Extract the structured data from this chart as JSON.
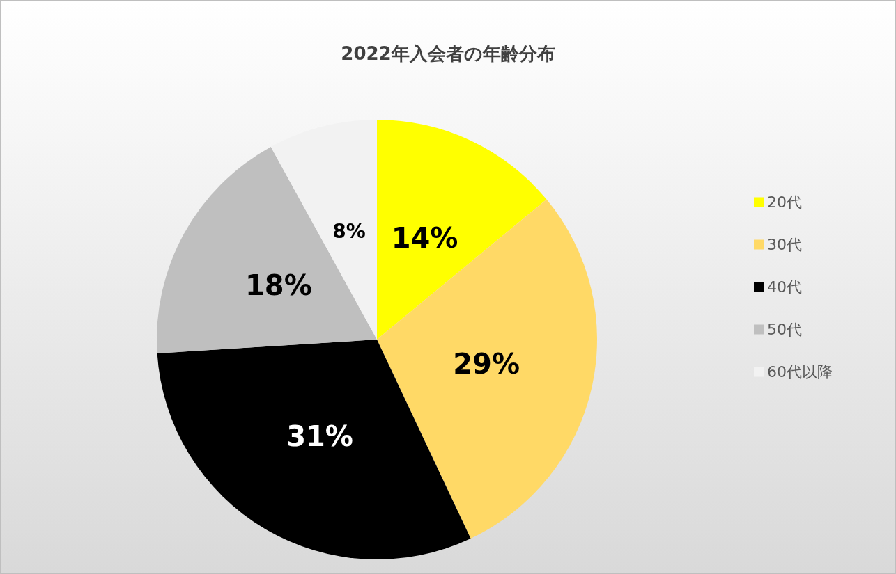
{
  "chart_data": {
    "type": "pie",
    "title": "2022年入会者の年齢分布",
    "categories": [
      "20代",
      "30代",
      "40代",
      "50代",
      "60代以降"
    ],
    "values": [
      14,
      29,
      31,
      18,
      8
    ],
    "colors": [
      "#ffff00",
      "#ffd966",
      "#000000",
      "#bfbfbf",
      "#f2f2f2"
    ],
    "value_labels": [
      "14%",
      "29%",
      "31%",
      "18%",
      "8%"
    ],
    "legend": "right"
  }
}
